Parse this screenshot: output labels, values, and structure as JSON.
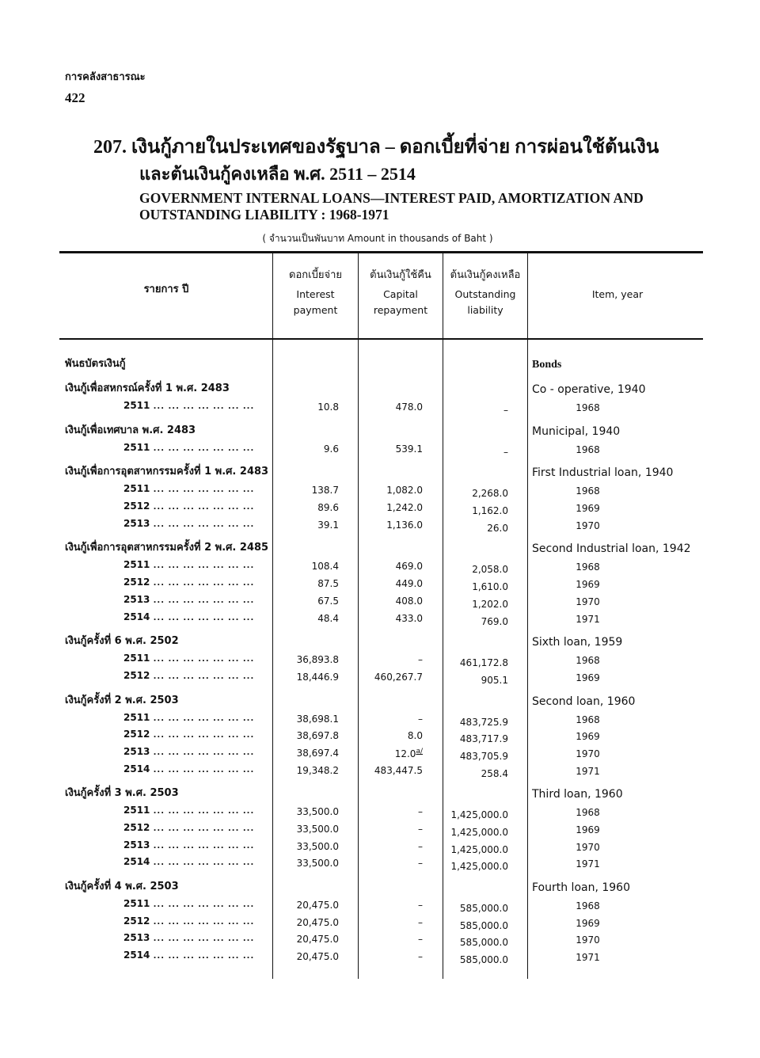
{
  "running_head": "การคลังสาธารณะ",
  "page_number": "422",
  "title": {
    "thai_line1": "207. เงินกู้ภายในประเทศของรัฐบาล – ดอกเบี้ยที่จ่าย  การผ่อนใช้ต้นเงิน",
    "thai_line2": "และต้นเงินกู้คงเหลือ  พ.ศ. 2511 – 2514",
    "english_line1": "GOVERNMENT INTERNAL LOANS—INTEREST PAID, AMORTIZATION AND",
    "english_line2": "OUTSTANDING LIABILITY : 1968-1971",
    "unit": "( จำนวนเป็นพันบาท Amount in thousands of Baht )"
  },
  "columns": {
    "item_thai": "รายการ  ปี",
    "interest_thai": "ดอกเบี้ยจ่าย",
    "interest_en1": "Interest",
    "interest_en2": "payment",
    "capital_thai": "ต้นเงินกู้ใช้คืน",
    "capital_en1": "Capital",
    "capital_en2": "repayment",
    "outstanding_thai": "ต้นเงินกู้คงเหลือ",
    "outstanding_en1": "Outstanding",
    "outstanding_en2": "liability",
    "item_en": "Item, year"
  },
  "section": {
    "thai": "พันธบัตรเงินกู้",
    "en": "Bonds"
  },
  "dots": "... ... ... ... ... ... ...",
  "groups": [
    {
      "thai": "เงินกู้เพื่อสหกรณ์ครั้งที่ 1  พ.ศ. 2483",
      "en": "Co - operative, 1940",
      "rows": [
        {
          "be": "2511",
          "interest": "10.8",
          "capital": "478.0",
          "outstanding": "–",
          "year": "1968"
        }
      ]
    },
    {
      "thai": "เงินกู้เพื่อเทศบาล  พ.ศ. 2483",
      "en": "Municipal, 1940",
      "rows": [
        {
          "be": "2511",
          "interest": "9.6",
          "capital": "539.1",
          "outstanding": "–",
          "year": "1968"
        }
      ]
    },
    {
      "thai": "เงินกู้เพื่อการอุตสาหกรรมครั้งที่ 1 พ.ศ. 2483",
      "en": "First Industrial loan, 1940",
      "rows": [
        {
          "be": "2511",
          "interest": "138.7",
          "capital": "1,082.0",
          "outstanding": "2,268.0",
          "year": "1968"
        },
        {
          "be": "2512",
          "interest": "89.6",
          "capital": "1,242.0",
          "outstanding": "1,162.0",
          "year": "1969"
        },
        {
          "be": "2513",
          "interest": "39.1",
          "capital": "1,136.0",
          "outstanding": "26.0",
          "year": "1970"
        }
      ]
    },
    {
      "thai": "เงินกู้เพื่อการอุตสาหกรรมครั้งที่ 2 พ.ศ. 2485",
      "en": "Second Industrial loan, 1942",
      "rows": [
        {
          "be": "2511",
          "interest": "108.4",
          "capital": "469.0",
          "outstanding": "2,058.0",
          "year": "1968"
        },
        {
          "be": "2512",
          "interest": "87.5",
          "capital": "449.0",
          "outstanding": "1,610.0",
          "year": "1969"
        },
        {
          "be": "2513",
          "interest": "67.5",
          "capital": "408.0",
          "outstanding": "1,202.0",
          "year": "1970"
        },
        {
          "be": "2514",
          "interest": "48.4",
          "capital": "433.0",
          "outstanding": "769.0",
          "year": "1971"
        }
      ]
    },
    {
      "thai": "เงินกู้ครั้งที่ 6  พ.ศ. 2502",
      "en": "Sixth loan, 1959",
      "rows": [
        {
          "be": "2511",
          "interest": "36,893.8",
          "capital": "–",
          "outstanding": "461,172.8",
          "year": "1968"
        },
        {
          "be": "2512",
          "interest": "18,446.9",
          "capital": "460,267.7",
          "outstanding": "905.1",
          "year": "1969"
        }
      ]
    },
    {
      "thai": "เงินกู้ครั้งที่ 2  พ.ศ. 2503",
      "en": "Second loan, 1960",
      "rows": [
        {
          "be": "2511",
          "interest": "38,698.1",
          "capital": "–",
          "outstanding": "483,725.9",
          "year": "1968"
        },
        {
          "be": "2512",
          "interest": "38,697.8",
          "capital": "8.0",
          "outstanding": "483,717.9",
          "year": "1969"
        },
        {
          "be": "2513",
          "interest": "38,697.4",
          "capital": "12.0",
          "capital_note": "a/",
          "outstanding": "483,705.9",
          "year": "1970"
        },
        {
          "be": "2514",
          "interest": "19,348.2",
          "capital": "483,447.5",
          "outstanding": "258.4",
          "year": "1971"
        }
      ]
    },
    {
      "thai": "เงินกู้ครั้งที่ 3  พ.ศ. 2503",
      "en": "Third loan, 1960",
      "rows": [
        {
          "be": "2511",
          "interest": "33,500.0",
          "capital": "–",
          "outstanding": "1,425,000.0",
          "year": "1968"
        },
        {
          "be": "2512",
          "interest": "33,500.0",
          "capital": "–",
          "outstanding": "1,425,000.0",
          "year": "1969"
        },
        {
          "be": "2513",
          "interest": "33,500.0",
          "capital": "–",
          "outstanding": "1,425,000.0",
          "year": "1970"
        },
        {
          "be": "2514",
          "interest": "33,500.0",
          "capital": "–",
          "outstanding": "1,425,000.0",
          "year": "1971"
        }
      ]
    },
    {
      "thai": "เงินกู้ครั้งที่ 4  พ.ศ. 2503",
      "en": "Fourth loan, 1960",
      "rows": [
        {
          "be": "2511",
          "interest": "20,475.0",
          "capital": "–",
          "outstanding": "585,000.0",
          "year": "1968"
        },
        {
          "be": "2512",
          "interest": "20,475.0",
          "capital": "–",
          "outstanding": "585,000.0",
          "year": "1969"
        },
        {
          "be": "2513",
          "interest": "20,475.0",
          "capital": "–",
          "outstanding": "585,000.0",
          "year": "1970"
        },
        {
          "be": "2514",
          "interest": "20,475.0",
          "capital": "–",
          "outstanding": "585,000.0",
          "year": "1971"
        }
      ]
    }
  ]
}
